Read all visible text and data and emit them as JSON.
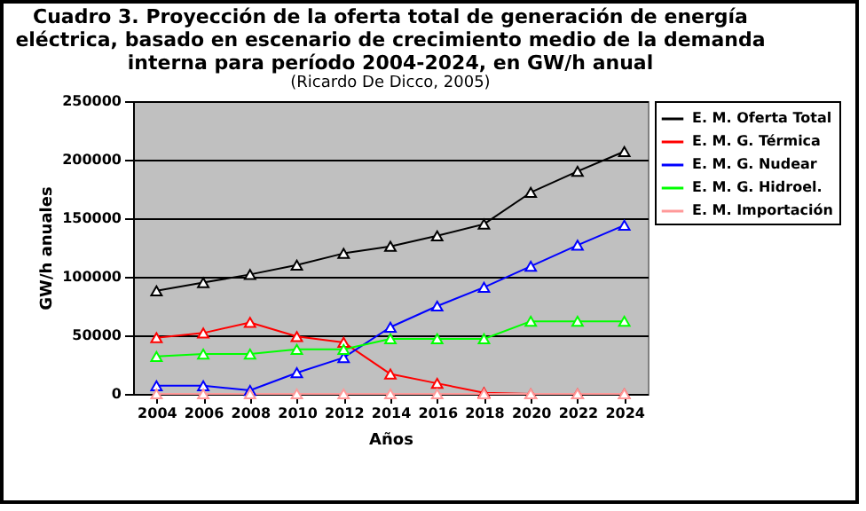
{
  "chart_data": {
    "type": "line",
    "title": [
      "Cuadro 3. Proyección de la oferta total de generación de energía",
      "eléctrica, basado en escenario de crecimiento medio de la demanda",
      "interna para período 2004-2024, en GW/h anual"
    ],
    "subtitle": "(Ricardo De Dicco, 2005)",
    "xlabel": "Años",
    "ylabel": "GW/h anuales",
    "categories": [
      "2004",
      "2006",
      "2008",
      "2010",
      "2012",
      "2014",
      "2016",
      "2018",
      "2020",
      "2022",
      "2024"
    ],
    "series": [
      {
        "name": "E. M. Oferta Total",
        "color": "#000000",
        "values": [
          88000,
          95000,
          102000,
          110000,
          120000,
          126000,
          135000,
          145000,
          172000,
          190000,
          207000
        ]
      },
      {
        "name": "E. M. G. Térmica",
        "color": "#ff0000",
        "values": [
          48000,
          52000,
          61000,
          49000,
          44000,
          17000,
          9000,
          1000,
          0,
          0,
          0
        ]
      },
      {
        "name": "E. M. G. Nudear",
        "color": "#0000ff",
        "values": [
          7000,
          7000,
          3000,
          18000,
          31000,
          57000,
          75000,
          91000,
          109000,
          127000,
          144000
        ]
      },
      {
        "name": "E. M. G. Hidroel.",
        "color": "#00ff00",
        "values": [
          32000,
          34000,
          34000,
          38000,
          38000,
          47000,
          47000,
          47000,
          62000,
          62000,
          62000
        ]
      },
      {
        "name": "E. M. Importación",
        "color": "#ff9999",
        "values": [
          0,
          0,
          0,
          0,
          0,
          0,
          0,
          0,
          0,
          0,
          0
        ]
      }
    ],
    "ylim": [
      0,
      250000
    ],
    "yticks": [
      0,
      50000,
      100000,
      150000,
      200000,
      250000
    ],
    "grid": "y",
    "legend": "right",
    "marker": "triangle",
    "line_style": "solid"
  }
}
